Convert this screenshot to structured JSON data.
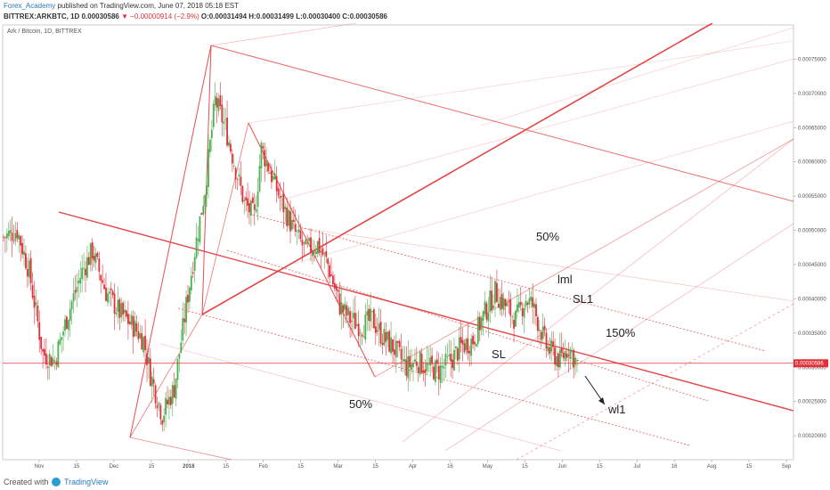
{
  "header": {
    "author": "Forex_Academy",
    "published": "published on TradingView.com, June 07, 2018 05:18 EST",
    "symbol": "BITTREX:ARKBTC, 1D",
    "last": "0.00030586",
    "change": "▼ −0.00000914 (−2.9%)",
    "open": "O:0.00031494",
    "high": "H:0.00031499",
    "low": "L:0.00030400",
    "close": "C:0.00030586"
  },
  "footer": {
    "created_with": "Created with",
    "brand": "TradingView"
  },
  "colors": {
    "up": "#4caf50",
    "down": "#e0303a",
    "pitchfork": "#e23c3c",
    "price_line": "#e0303a"
  },
  "chart_data": {
    "type": "candlestick",
    "title": "Ark / Bitcoin, 1D, BITTREX",
    "current_price": 0.00030586,
    "current_price_label": "0.00030586",
    "ylim": [
      0.000165,
      0.0008
    ],
    "y_ticks": [
      0.0002,
      0.00025,
      0.0003,
      0.00035,
      0.0004,
      0.00045,
      0.0005,
      0.00055,
      0.0006,
      0.00065,
      0.0007,
      0.00075
    ],
    "y_tick_labels": [
      "0.00020000",
      "0.00025000",
      "0.00030000",
      "0.00035000",
      "0.00040000",
      "0.00045000",
      "0.00050000",
      "0.00055000",
      "0.00060000",
      "0.00065000",
      "0.00070000",
      "0.00075000"
    ],
    "x_tick_labels": [
      "Nov",
      "15",
      "Dec",
      "15",
      "2018",
      "15",
      "Feb",
      "15",
      "Mar",
      "15",
      "Apr",
      "16",
      "May",
      "15",
      "Jun",
      "15",
      "Jul",
      "16",
      "Aug",
      "15",
      "Sep"
    ],
    "annotations": [
      "50%",
      "lml",
      "SL1",
      "150%",
      "SL",
      "50%",
      "wl1"
    ],
    "path": [
      [
        0,
        0.00049
      ],
      [
        8,
        0.0005
      ],
      [
        15,
        0.00044
      ],
      [
        23,
        0.00032
      ],
      [
        30,
        0.00031
      ],
      [
        38,
        0.00038
      ],
      [
        46,
        0.00044
      ],
      [
        52,
        0.00047
      ],
      [
        60,
        0.00041
      ],
      [
        68,
        0.00038
      ],
      [
        76,
        0.00036
      ],
      [
        82,
        0.00034
      ],
      [
        86,
        0.00029
      ],
      [
        93,
        0.00023
      ],
      [
        100,
        0.00027
      ],
      [
        107,
        0.00039
      ],
      [
        112,
        0.00047
      ],
      [
        118,
        0.00056
      ],
      [
        124,
        0.00069
      ],
      [
        130,
        0.00065
      ],
      [
        136,
        0.00059
      ],
      [
        141,
        0.00054
      ],
      [
        147,
        0.00052
      ],
      [
        151,
        0.00062
      ],
      [
        157,
        0.00058
      ],
      [
        163,
        0.00054
      ],
      [
        170,
        0.0005
      ],
      [
        177,
        0.00047
      ],
      [
        184,
        0.00048
      ],
      [
        190,
        0.00045
      ],
      [
        197,
        0.00039
      ],
      [
        203,
        0.00037
      ],
      [
        210,
        0.00036
      ],
      [
        216,
        0.00037
      ],
      [
        222,
        0.000345
      ],
      [
        228,
        0.00033
      ],
      [
        236,
        0.0003
      ],
      [
        242,
        0.00031
      ],
      [
        248,
        0.0003
      ],
      [
        255,
        0.000295
      ],
      [
        262,
        0.00031
      ],
      [
        268,
        0.00033
      ],
      [
        275,
        0.00034
      ],
      [
        282,
        0.00038
      ],
      [
        288,
        0.00041
      ],
      [
        294,
        0.00039
      ],
      [
        300,
        0.00037
      ],
      [
        306,
        0.0004
      ],
      [
        310,
        0.00039
      ],
      [
        314,
        0.00036
      ],
      [
        318,
        0.00033
      ],
      [
        322,
        0.00032
      ],
      [
        326,
        0.00031
      ],
      [
        331,
        0.00033
      ],
      [
        336,
        0.000305
      ]
    ]
  }
}
